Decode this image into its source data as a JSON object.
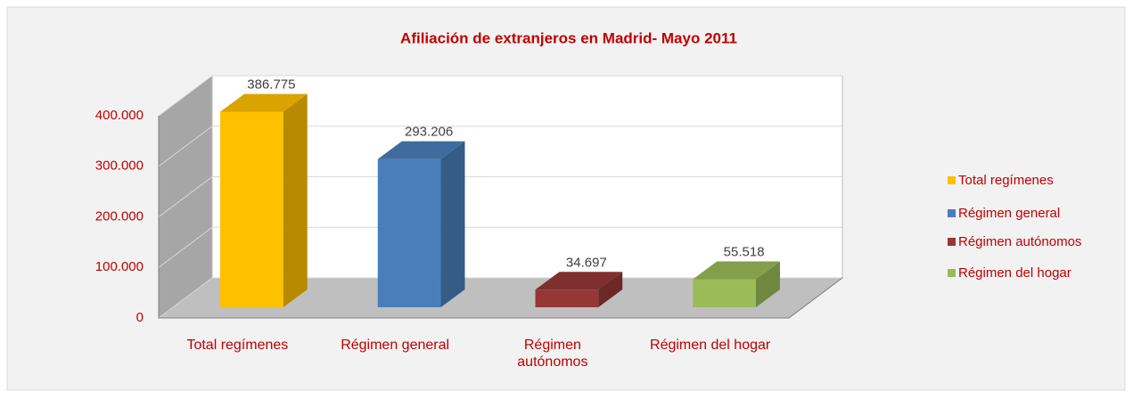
{
  "chart_data": {
    "type": "bar3d",
    "title": "Afiliación de extranjeros en Madrid- Mayo 2011",
    "categories": [
      "Total regímenes",
      "Régimen general",
      "Régimen autónomos",
      "Régimen del hogar"
    ],
    "values": [
      386775,
      293206,
      34697,
      55518
    ],
    "value_labels": [
      "386.775",
      "293.206",
      "34.697",
      "55.518"
    ],
    "colors": [
      "#ffc000",
      "#4a7ebb",
      "#953735",
      "#9bbb59"
    ],
    "ylim": [
      0,
      400000
    ],
    "yticks": [
      0,
      {
        "value": 100000,
        "label": "100.000"
      },
      {
        "value": 200000,
        "label": "200.000"
      },
      {
        "value": 300000,
        "label": "300.000"
      },
      {
        "value": 400000,
        "label": "400.000"
      }
    ],
    "grid": true,
    "legend": "right"
  }
}
